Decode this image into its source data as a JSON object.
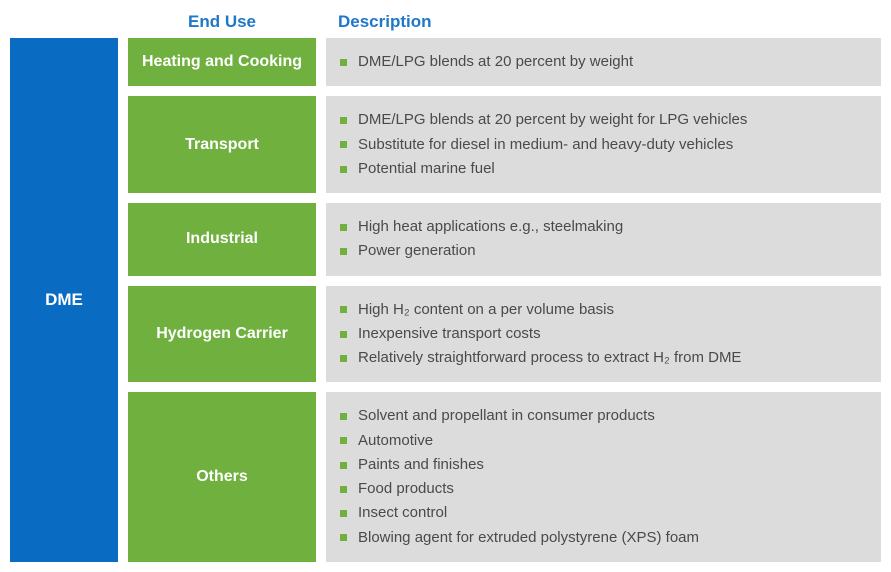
{
  "colors": {
    "header_text": "#1f77c9",
    "main_bg": "#0a6bc2",
    "cat_bg": "#6fb03e",
    "desc_bg": "#dcdcdc",
    "desc_text": "#4a4a4a",
    "bullet": "#6fb03e"
  },
  "fontsize": {
    "header": 17,
    "main": 17,
    "cat": 16,
    "li": 15
  },
  "headers": {
    "end_use": "End Use",
    "description": "Description"
  },
  "main_label": "DME",
  "rows": [
    {
      "label": "Heating and Cooking",
      "items": [
        "DME/LPG blends at 20 percent by weight"
      ]
    },
    {
      "label": "Transport",
      "items": [
        "DME/LPG blends at 20 percent by weight for LPG vehicles",
        "Substitute for diesel in medium- and heavy-duty vehicles",
        "Potential marine fuel"
      ]
    },
    {
      "label": "Industrial",
      "items": [
        "High heat applications e.g., steelmaking",
        "Power generation"
      ]
    },
    {
      "label": "Hydrogen Carrier",
      "items": [
        "High H₂ content on a per volume basis",
        "Inexpensive transport costs",
        "Relatively straightforward process to extract H₂ from DME"
      ]
    },
    {
      "label": "Others",
      "items": [
        "Solvent and propellant in consumer products",
        "Automotive",
        "Paints and finishes",
        "Food products",
        "Insect control",
        "Blowing agent for extruded polystyrene (XPS) foam"
      ]
    }
  ]
}
